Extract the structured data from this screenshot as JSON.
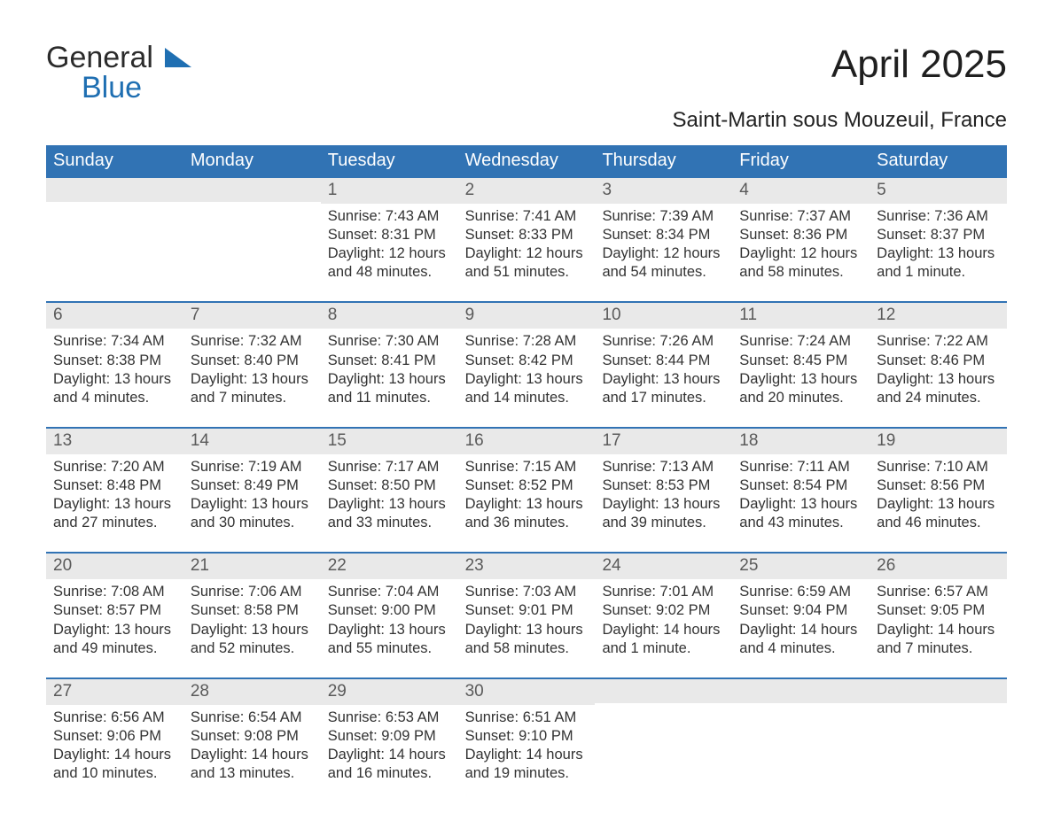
{
  "logo": {
    "text_general": "General",
    "text_blue": "Blue"
  },
  "title": "April 2025",
  "subtitle": "Saint-Martin sous Mouzeuil, France",
  "colors": {
    "header_bg": "#3173b4",
    "header_text": "#ffffff",
    "daynum_bg": "#e9e9e9",
    "daynum_text": "#5a5a5a",
    "body_text": "#333333",
    "week_border": "#3173b4",
    "logo_blue": "#1f6fb2",
    "page_bg": "#ffffff"
  },
  "fonts": {
    "title_size_pt": 33,
    "subtitle_size_pt": 18,
    "weekday_size_pt": 15,
    "daynum_size_pt": 14,
    "body_size_pt": 12,
    "family": "Arial"
  },
  "weekdays": [
    "Sunday",
    "Monday",
    "Tuesday",
    "Wednesday",
    "Thursday",
    "Friday",
    "Saturday"
  ],
  "weeks": [
    [
      {
        "blank": true
      },
      {
        "blank": true
      },
      {
        "n": "1",
        "sunrise": "7:43 AM",
        "sunset": "8:31 PM",
        "daylight": "12 hours and 48 minutes."
      },
      {
        "n": "2",
        "sunrise": "7:41 AM",
        "sunset": "8:33 PM",
        "daylight": "12 hours and 51 minutes."
      },
      {
        "n": "3",
        "sunrise": "7:39 AM",
        "sunset": "8:34 PM",
        "daylight": "12 hours and 54 minutes."
      },
      {
        "n": "4",
        "sunrise": "7:37 AM",
        "sunset": "8:36 PM",
        "daylight": "12 hours and 58 minutes."
      },
      {
        "n": "5",
        "sunrise": "7:36 AM",
        "sunset": "8:37 PM",
        "daylight": "13 hours and 1 minute."
      }
    ],
    [
      {
        "n": "6",
        "sunrise": "7:34 AM",
        "sunset": "8:38 PM",
        "daylight": "13 hours and 4 minutes."
      },
      {
        "n": "7",
        "sunrise": "7:32 AM",
        "sunset": "8:40 PM",
        "daylight": "13 hours and 7 minutes."
      },
      {
        "n": "8",
        "sunrise": "7:30 AM",
        "sunset": "8:41 PM",
        "daylight": "13 hours and 11 minutes."
      },
      {
        "n": "9",
        "sunrise": "7:28 AM",
        "sunset": "8:42 PM",
        "daylight": "13 hours and 14 minutes."
      },
      {
        "n": "10",
        "sunrise": "7:26 AM",
        "sunset": "8:44 PM",
        "daylight": "13 hours and 17 minutes."
      },
      {
        "n": "11",
        "sunrise": "7:24 AM",
        "sunset": "8:45 PM",
        "daylight": "13 hours and 20 minutes."
      },
      {
        "n": "12",
        "sunrise": "7:22 AM",
        "sunset": "8:46 PM",
        "daylight": "13 hours and 24 minutes."
      }
    ],
    [
      {
        "n": "13",
        "sunrise": "7:20 AM",
        "sunset": "8:48 PM",
        "daylight": "13 hours and 27 minutes."
      },
      {
        "n": "14",
        "sunrise": "7:19 AM",
        "sunset": "8:49 PM",
        "daylight": "13 hours and 30 minutes."
      },
      {
        "n": "15",
        "sunrise": "7:17 AM",
        "sunset": "8:50 PM",
        "daylight": "13 hours and 33 minutes."
      },
      {
        "n": "16",
        "sunrise": "7:15 AM",
        "sunset": "8:52 PM",
        "daylight": "13 hours and 36 minutes."
      },
      {
        "n": "17",
        "sunrise": "7:13 AM",
        "sunset": "8:53 PM",
        "daylight": "13 hours and 39 minutes."
      },
      {
        "n": "18",
        "sunrise": "7:11 AM",
        "sunset": "8:54 PM",
        "daylight": "13 hours and 43 minutes."
      },
      {
        "n": "19",
        "sunrise": "7:10 AM",
        "sunset": "8:56 PM",
        "daylight": "13 hours and 46 minutes."
      }
    ],
    [
      {
        "n": "20",
        "sunrise": "7:08 AM",
        "sunset": "8:57 PM",
        "daylight": "13 hours and 49 minutes."
      },
      {
        "n": "21",
        "sunrise": "7:06 AM",
        "sunset": "8:58 PM",
        "daylight": "13 hours and 52 minutes."
      },
      {
        "n": "22",
        "sunrise": "7:04 AM",
        "sunset": "9:00 PM",
        "daylight": "13 hours and 55 minutes."
      },
      {
        "n": "23",
        "sunrise": "7:03 AM",
        "sunset": "9:01 PM",
        "daylight": "13 hours and 58 minutes."
      },
      {
        "n": "24",
        "sunrise": "7:01 AM",
        "sunset": "9:02 PM",
        "daylight": "14 hours and 1 minute."
      },
      {
        "n": "25",
        "sunrise": "6:59 AM",
        "sunset": "9:04 PM",
        "daylight": "14 hours and 4 minutes."
      },
      {
        "n": "26",
        "sunrise": "6:57 AM",
        "sunset": "9:05 PM",
        "daylight": "14 hours and 7 minutes."
      }
    ],
    [
      {
        "n": "27",
        "sunrise": "6:56 AM",
        "sunset": "9:06 PM",
        "daylight": "14 hours and 10 minutes."
      },
      {
        "n": "28",
        "sunrise": "6:54 AM",
        "sunset": "9:08 PM",
        "daylight": "14 hours and 13 minutes."
      },
      {
        "n": "29",
        "sunrise": "6:53 AM",
        "sunset": "9:09 PM",
        "daylight": "14 hours and 16 minutes."
      },
      {
        "n": "30",
        "sunrise": "6:51 AM",
        "sunset": "9:10 PM",
        "daylight": "14 hours and 19 minutes."
      },
      {
        "blank": true
      },
      {
        "blank": true
      },
      {
        "blank": true
      }
    ]
  ],
  "labels": {
    "sunrise": "Sunrise:",
    "sunset": "Sunset:",
    "daylight": "Daylight:"
  }
}
